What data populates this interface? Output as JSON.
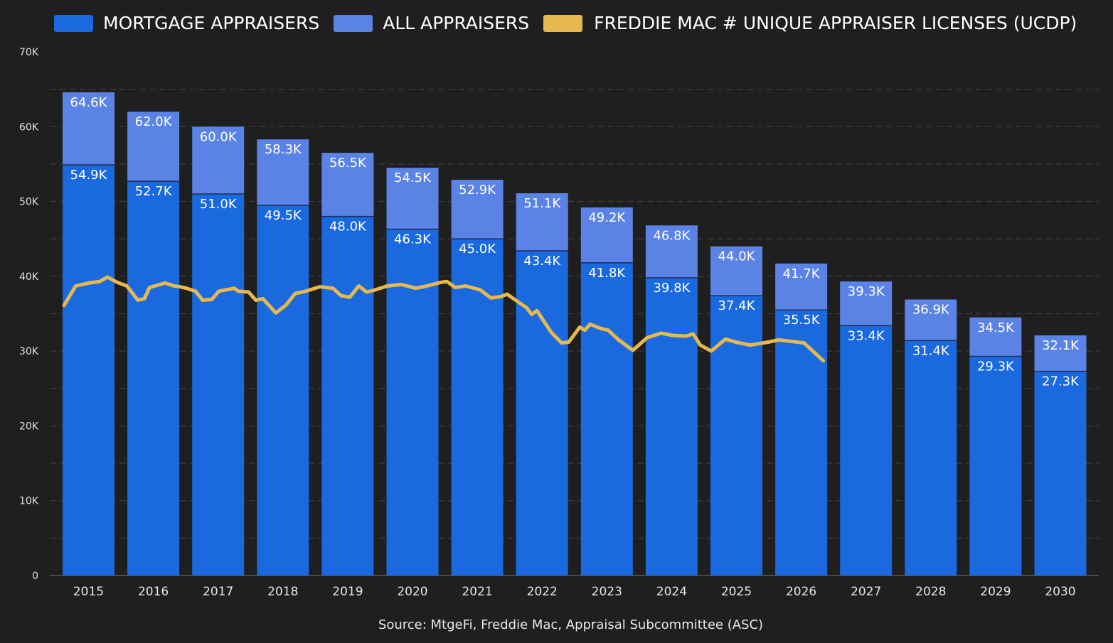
{
  "chart_data": {
    "type": "bar",
    "stacked": true,
    "categories": [
      "2015",
      "2016",
      "2017",
      "2018",
      "2019",
      "2020",
      "2021",
      "2022",
      "2023",
      "2024",
      "2025",
      "2026",
      "2027",
      "2028",
      "2029",
      "2030"
    ],
    "series": [
      {
        "name": "MORTGAGE APPRAISERS",
        "color": "#1a69df",
        "values": [
          54.9,
          52.7,
          51.0,
          49.5,
          48.0,
          46.3,
          45.0,
          43.4,
          41.8,
          39.8,
          37.4,
          35.5,
          33.4,
          31.4,
          29.3,
          27.3
        ],
        "labels": [
          "54.9K",
          "52.7K",
          "51.0K",
          "49.5K",
          "48.0K",
          "46.3K",
          "45.0K",
          "43.4K",
          "41.8K",
          "39.8K",
          "37.4K",
          "35.5K",
          "33.4K",
          "31.4K",
          "29.3K",
          "27.3K"
        ]
      },
      {
        "name": "ALL APPRAISERS",
        "color": "#5b83e6",
        "totals": [
          64.6,
          62.0,
          60.0,
          58.3,
          56.5,
          54.5,
          52.9,
          51.1,
          49.2,
          46.8,
          44.0,
          41.7,
          39.3,
          36.9,
          34.5,
          32.1
        ],
        "labels": [
          "64.6K",
          "62.0K",
          "60.0K",
          "58.3K",
          "56.5K",
          "54.5K",
          "52.9K",
          "51.1K",
          "49.2K",
          "46.8K",
          "44.0K",
          "41.7K",
          "39.3K",
          "36.9K",
          "34.5K",
          "32.1K"
        ]
      }
    ],
    "line": {
      "name": "FREDDIE MAC # UNIQUE APPRAISER LICENSES (UCDP)",
      "color": "#e6b94f",
      "x": [
        2015.0,
        2015.18,
        2015.38,
        2015.55,
        2015.67,
        2015.82,
        2015.97,
        2016.14,
        2016.24,
        2016.32,
        2016.56,
        2016.7,
        2016.79,
        2016.89,
        2017.03,
        2017.14,
        2017.28,
        2017.39,
        2017.63,
        2017.69,
        2017.85,
        2017.96,
        2018.07,
        2018.27,
        2018.42,
        2018.57,
        2018.73,
        2018.95,
        2019.15,
        2019.28,
        2019.41,
        2019.55,
        2019.67,
        2019.77,
        2019.99,
        2020.21,
        2020.43,
        2020.6,
        2020.82,
        2020.91,
        2021.04,
        2021.2,
        2021.42,
        2021.59,
        2021.75,
        2021.84,
        2021.97,
        2022.14,
        2022.22,
        2022.3,
        2022.52,
        2022.68,
        2022.79,
        2022.96,
        2023.04,
        2023.12,
        2023.29,
        2023.4,
        2023.56,
        2023.78,
        2024.0,
        2024.22,
        2024.39,
        2024.6,
        2024.71,
        2024.82,
        2024.99,
        2025.21,
        2025.37,
        2025.59,
        2025.87,
        2026.03,
        2026.42,
        2026.72
      ],
      "y": [
        36.1,
        38.7,
        39.1,
        39.3,
        39.9,
        39.2,
        38.7,
        36.8,
        37.0,
        38.5,
        39.1,
        38.7,
        38.6,
        38.4,
        38.0,
        36.8,
        36.9,
        38.0,
        38.4,
        38.0,
        37.9,
        36.8,
        37.0,
        35.1,
        36.1,
        37.7,
        38.0,
        38.6,
        38.4,
        37.4,
        37.2,
        38.7,
        37.9,
        38.1,
        38.7,
        38.9,
        38.4,
        38.7,
        39.2,
        39.3,
        38.5,
        38.7,
        38.2,
        37.1,
        37.3,
        37.6,
        36.8,
        35.8,
        34.9,
        35.4,
        32.5,
        31.1,
        31.2,
        33.2,
        32.8,
        33.6,
        33.0,
        32.8,
        31.5,
        30.1,
        31.8,
        32.4,
        32.1,
        32.0,
        32.3,
        30.8,
        30.0,
        31.6,
        31.2,
        30.8,
        31.2,
        31.5,
        31.1,
        28.7
      ]
    },
    "yticks": [
      "0",
      "10K",
      "20K",
      "30K",
      "40K",
      "50K",
      "60K",
      "70K"
    ],
    "ylim": [
      0,
      70
    ],
    "grid": true,
    "legend_placement": "top",
    "source": "Source: MtgeFi, Freddie Mac, Appraisal Subcommittee (ASC)"
  }
}
